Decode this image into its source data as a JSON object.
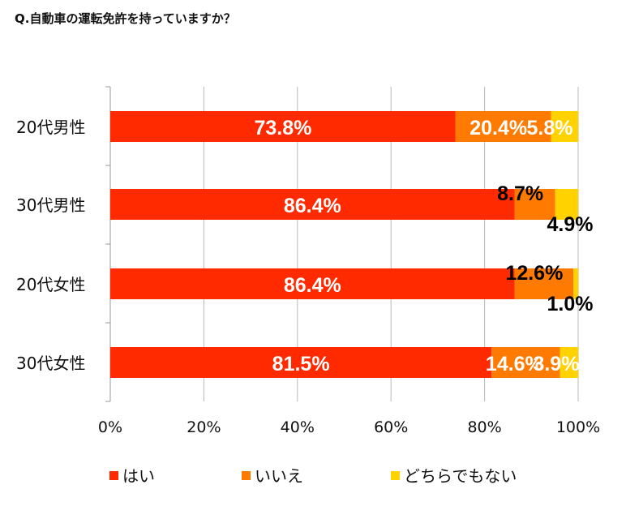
{
  "title": "Q.自動車の運転免許を持っていますか？",
  "chart_data": {
    "type": "bar",
    "orientation": "horizontal",
    "stacked": true,
    "categories": [
      "20代男性",
      "30代男性",
      "20代女性",
      "30代女性"
    ],
    "series": [
      {
        "name": "はい",
        "color": "#ff2a00",
        "values": [
          73.8,
          86.4,
          86.4,
          81.5
        ]
      },
      {
        "name": "いいえ",
        "color": "#ff7a00",
        "values": [
          20.4,
          8.7,
          12.6,
          14.6
        ]
      },
      {
        "name": "どちらでもない",
        "color": "#ffd200",
        "values": [
          5.8,
          4.9,
          1.0,
          3.9
        ]
      }
    ],
    "data_labels": [
      [
        "73.8%",
        "20.4%",
        "5.8%"
      ],
      [
        "86.4%",
        "8.7%",
        "4.9%"
      ],
      [
        "86.4%",
        "12.6%",
        "1.0%"
      ],
      [
        "81.5%",
        "14.6%",
        "3.9%"
      ]
    ],
    "xlim": [
      0,
      100
    ],
    "xticks": [
      "0%",
      "20%",
      "40%",
      "60%",
      "80%",
      "100%"
    ],
    "grid": true,
    "legend": "bottom"
  }
}
